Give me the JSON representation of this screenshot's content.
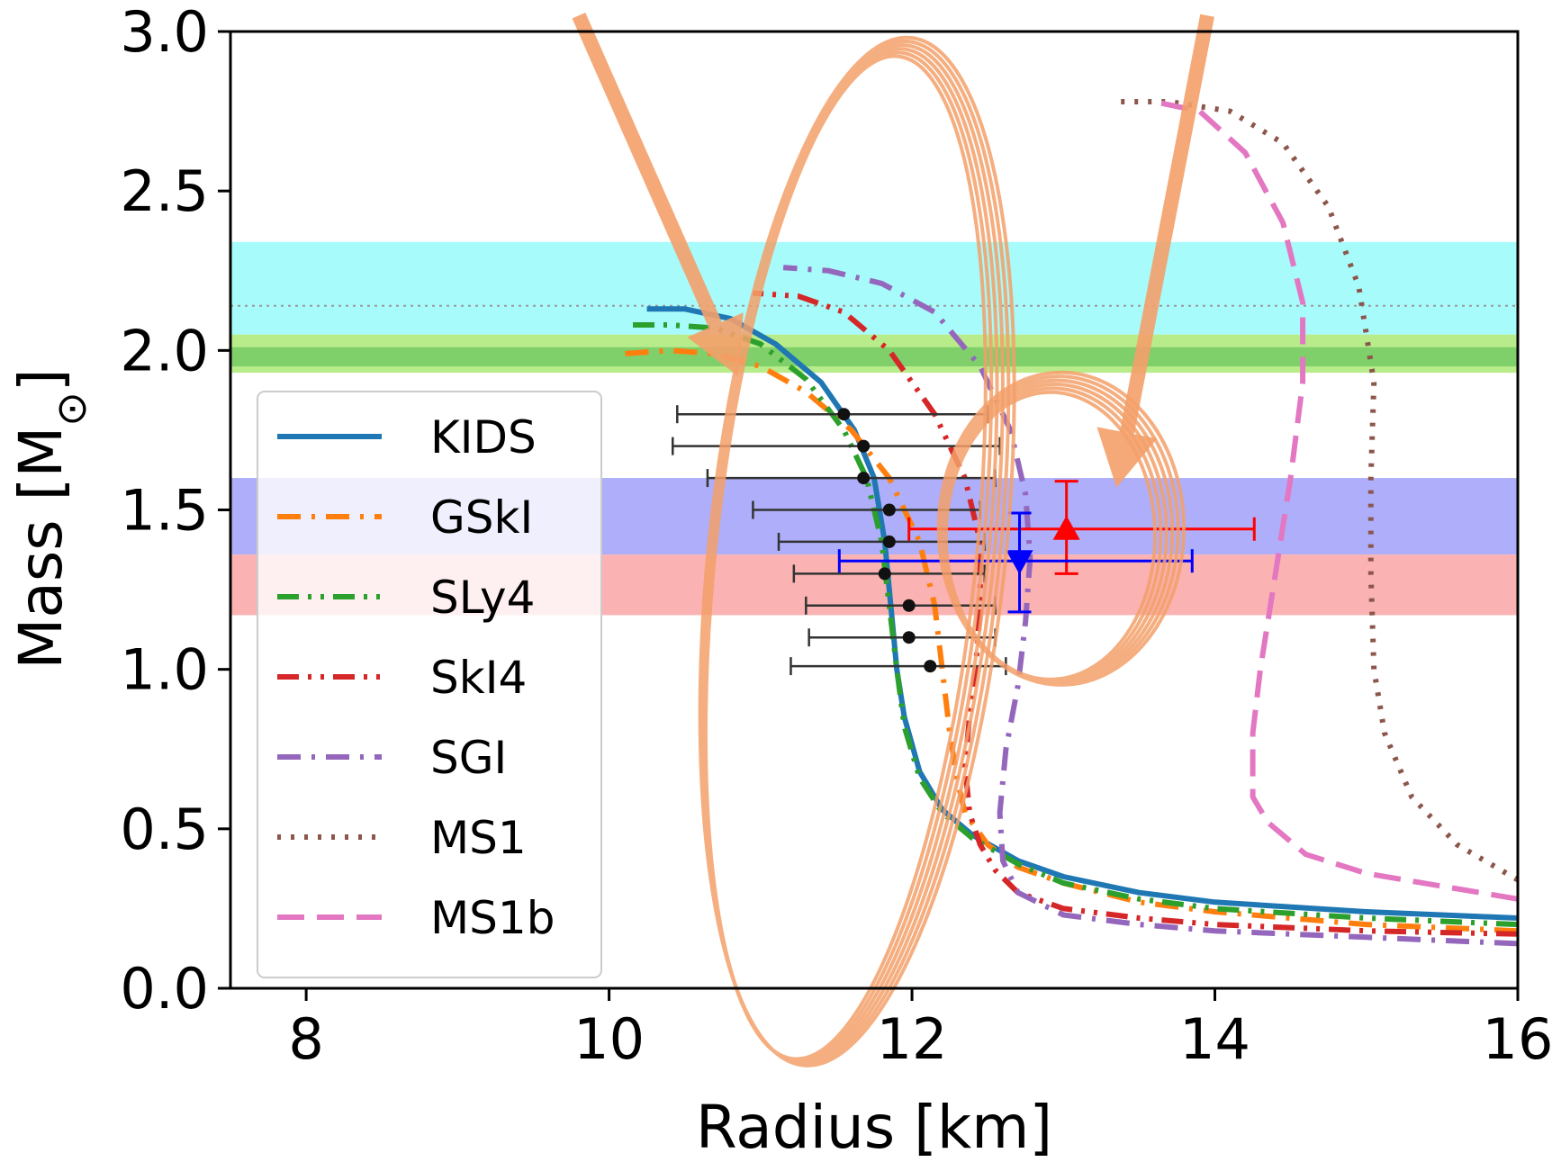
{
  "chart_data": {
    "type": "line",
    "xlabel": "Radius [km]",
    "ylabel_main": "Mass [M",
    "ylabel_sub": "⊙",
    "ylabel_end": "]",
    "xlim": [
      7.5,
      16
    ],
    "ylim": [
      0,
      3.0
    ],
    "xticks": [
      8,
      10,
      12,
      14,
      16
    ],
    "yticks": [
      0.0,
      0.5,
      1.0,
      1.5,
      2.0,
      2.5,
      3.0
    ],
    "xtick_labels": [
      "8",
      "10",
      "12",
      "14",
      "16"
    ],
    "ytick_labels": [
      "0.0",
      "0.5",
      "1.0",
      "1.5",
      "2.0",
      "2.5",
      "3.0"
    ],
    "grid": false,
    "legend_position": "lower-left",
    "bands": [
      {
        "ymin": 2.05,
        "ymax": 2.34,
        "color": "#a8fbfb",
        "opacity": 1.0
      },
      {
        "ymin": 1.93,
        "ymax": 2.05,
        "color": "#b8ec8a",
        "opacity": 1.0
      },
      {
        "ymin": 1.95,
        "ymax": 2.01,
        "color": "#7fcf6a",
        "opacity": 1.0
      },
      {
        "ymin": 1.36,
        "ymax": 1.6,
        "color": "#aeaefa",
        "opacity": 1.0
      },
      {
        "ymin": 1.17,
        "ymax": 1.36,
        "color": "#fab2b2",
        "opacity": 1.0
      }
    ],
    "reference_line": {
      "y": 2.14,
      "color": "#999999"
    },
    "series": [
      {
        "name": "KIDS",
        "color": "#1f77b4",
        "style": "solid",
        "points": [
          [
            16.0,
            0.22
          ],
          [
            15.0,
            0.24
          ],
          [
            14.0,
            0.27
          ],
          [
            13.5,
            0.3
          ],
          [
            13.0,
            0.35
          ],
          [
            12.7,
            0.4
          ],
          [
            12.4,
            0.48
          ],
          [
            12.2,
            0.56
          ],
          [
            12.05,
            0.68
          ],
          [
            11.95,
            0.85
          ],
          [
            11.9,
            1.0
          ],
          [
            11.86,
            1.2
          ],
          [
            11.82,
            1.4
          ],
          [
            11.75,
            1.6
          ],
          [
            11.62,
            1.75
          ],
          [
            11.4,
            1.9
          ],
          [
            11.1,
            2.02
          ],
          [
            10.8,
            2.1
          ],
          [
            10.5,
            2.13
          ],
          [
            10.25,
            2.13
          ]
        ]
      },
      {
        "name": "GSkI",
        "color": "#ff7f0e",
        "style": "dashdot",
        "points": [
          [
            16.0,
            0.18
          ],
          [
            15.0,
            0.2
          ],
          [
            14.0,
            0.24
          ],
          [
            13.5,
            0.27
          ],
          [
            13.0,
            0.33
          ],
          [
            12.7,
            0.38
          ],
          [
            12.5,
            0.45
          ],
          [
            12.35,
            0.55
          ],
          [
            12.3,
            0.65
          ],
          [
            12.25,
            0.8
          ],
          [
            12.2,
            1.0
          ],
          [
            12.15,
            1.2
          ],
          [
            12.05,
            1.4
          ],
          [
            11.85,
            1.6
          ],
          [
            11.6,
            1.75
          ],
          [
            11.3,
            1.87
          ],
          [
            11.0,
            1.95
          ],
          [
            10.7,
            1.99
          ],
          [
            10.4,
            2.0
          ],
          [
            10.1,
            1.99
          ]
        ]
      },
      {
        "name": "SLy4",
        "color": "#2ca02c",
        "style": "dashdotdot",
        "points": [
          [
            16.0,
            0.2
          ],
          [
            15.0,
            0.22
          ],
          [
            14.0,
            0.25
          ],
          [
            13.5,
            0.28
          ],
          [
            13.0,
            0.33
          ],
          [
            12.7,
            0.39
          ],
          [
            12.4,
            0.47
          ],
          [
            12.2,
            0.55
          ],
          [
            12.05,
            0.66
          ],
          [
            11.95,
            0.82
          ],
          [
            11.9,
            1.0
          ],
          [
            11.85,
            1.2
          ],
          [
            11.8,
            1.4
          ],
          [
            11.7,
            1.6
          ],
          [
            11.55,
            1.75
          ],
          [
            11.3,
            1.91
          ],
          [
            11.0,
            2.02
          ],
          [
            10.7,
            2.07
          ],
          [
            10.4,
            2.08
          ],
          [
            10.1,
            2.08
          ]
        ]
      },
      {
        "name": "SkI4",
        "color": "#d62728",
        "style": "dashdotdot",
        "points": [
          [
            16.0,
            0.17
          ],
          [
            15.0,
            0.18
          ],
          [
            14.0,
            0.2
          ],
          [
            13.5,
            0.22
          ],
          [
            13.0,
            0.25
          ],
          [
            12.7,
            0.3
          ],
          [
            12.55,
            0.37
          ],
          [
            12.45,
            0.45
          ],
          [
            12.38,
            0.55
          ],
          [
            12.35,
            0.7
          ],
          [
            12.38,
            0.85
          ],
          [
            12.42,
            1.0
          ],
          [
            12.45,
            1.2
          ],
          [
            12.45,
            1.4
          ],
          [
            12.35,
            1.6
          ],
          [
            12.15,
            1.8
          ],
          [
            11.85,
            2.0
          ],
          [
            11.55,
            2.12
          ],
          [
            11.25,
            2.17
          ],
          [
            10.95,
            2.18
          ]
        ]
      },
      {
        "name": "SGI",
        "color": "#9467bd",
        "style": "dashdot",
        "points": [
          [
            16.0,
            0.14
          ],
          [
            15.0,
            0.16
          ],
          [
            14.0,
            0.18
          ],
          [
            13.5,
            0.2
          ],
          [
            13.0,
            0.23
          ],
          [
            12.7,
            0.3
          ],
          [
            12.6,
            0.4
          ],
          [
            12.58,
            0.55
          ],
          [
            12.62,
            0.75
          ],
          [
            12.7,
            0.95
          ],
          [
            12.75,
            1.15
          ],
          [
            12.78,
            1.35
          ],
          [
            12.75,
            1.55
          ],
          [
            12.65,
            1.75
          ],
          [
            12.45,
            1.95
          ],
          [
            12.15,
            2.12
          ],
          [
            11.8,
            2.21
          ],
          [
            11.45,
            2.25
          ],
          [
            11.15,
            2.26
          ]
        ]
      },
      {
        "name": "MS1",
        "color": "#8c564b",
        "style": "dotted",
        "points": [
          [
            16.0,
            0.34
          ],
          [
            15.6,
            0.45
          ],
          [
            15.3,
            0.6
          ],
          [
            15.12,
            0.8
          ],
          [
            15.05,
            1.0
          ],
          [
            15.03,
            1.3
          ],
          [
            15.03,
            1.6
          ],
          [
            15.05,
            1.9
          ],
          [
            14.95,
            2.2
          ],
          [
            14.75,
            2.45
          ],
          [
            14.45,
            2.65
          ],
          [
            14.1,
            2.75
          ],
          [
            13.7,
            2.78
          ],
          [
            13.35,
            2.78
          ]
        ]
      },
      {
        "name": "MS1b",
        "color": "#e377c2",
        "style": "dashed",
        "points": [
          [
            16.0,
            0.28
          ],
          [
            15.5,
            0.32
          ],
          [
            15.0,
            0.36
          ],
          [
            14.6,
            0.42
          ],
          [
            14.35,
            0.52
          ],
          [
            14.25,
            0.6
          ],
          [
            14.25,
            0.8
          ],
          [
            14.3,
            1.0
          ],
          [
            14.4,
            1.3
          ],
          [
            14.5,
            1.6
          ],
          [
            14.58,
            1.9
          ],
          [
            14.58,
            2.15
          ],
          [
            14.45,
            2.4
          ],
          [
            14.2,
            2.62
          ],
          [
            13.9,
            2.75
          ],
          [
            13.6,
            2.78
          ]
        ]
      }
    ],
    "error_points": [
      {
        "x": 11.55,
        "y": 1.8,
        "xerr": [
          10.45,
          12.5
        ]
      },
      {
        "x": 11.68,
        "y": 1.7,
        "xerr": [
          10.42,
          12.58
        ]
      },
      {
        "x": 11.68,
        "y": 1.6,
        "xerr": [
          10.65,
          12.55
        ]
      },
      {
        "x": 11.85,
        "y": 1.5,
        "xerr": [
          10.95,
          12.45
        ]
      },
      {
        "x": 11.85,
        "y": 1.4,
        "xerr": [
          11.12,
          12.48
        ]
      },
      {
        "x": 11.82,
        "y": 1.3,
        "xerr": [
          11.22,
          12.48
        ]
      },
      {
        "x": 11.98,
        "y": 1.2,
        "xerr": [
          11.3,
          12.55
        ]
      },
      {
        "x": 11.98,
        "y": 1.1,
        "xerr": [
          11.32,
          12.55
        ]
      },
      {
        "x": 12.12,
        "y": 1.01,
        "xerr": [
          11.2,
          12.62
        ]
      }
    ],
    "measurements": [
      {
        "x": 13.02,
        "y": 1.44,
        "xerr": [
          11.98,
          14.26
        ],
        "yerr": [
          1.3,
          1.59
        ],
        "color": "#ff0000",
        "marker": "triangle-up"
      },
      {
        "x": 12.71,
        "y": 1.34,
        "xerr": [
          11.52,
          13.85
        ],
        "yerr": [
          1.18,
          1.49
        ],
        "color": "#0000ff",
        "marker": "triangle-down"
      }
    ],
    "annotations": {
      "color": "#f4a06a",
      "arrows": [
        {
          "from": [
            9.8,
            3.05
          ],
          "to": [
            10.85,
            1.92
          ]
        },
        {
          "from": [
            13.95,
            3.05
          ],
          "to": [
            13.35,
            1.57
          ]
        }
      ],
      "loops": [
        {
          "cx": 11.6,
          "cy": 1.36,
          "rx": 0.92,
          "ry": 1.6,
          "angle": 6
        },
        {
          "cx": 12.95,
          "cy": 1.43,
          "rx": 0.75,
          "ry": 0.47,
          "angle": 0
        }
      ]
    }
  }
}
